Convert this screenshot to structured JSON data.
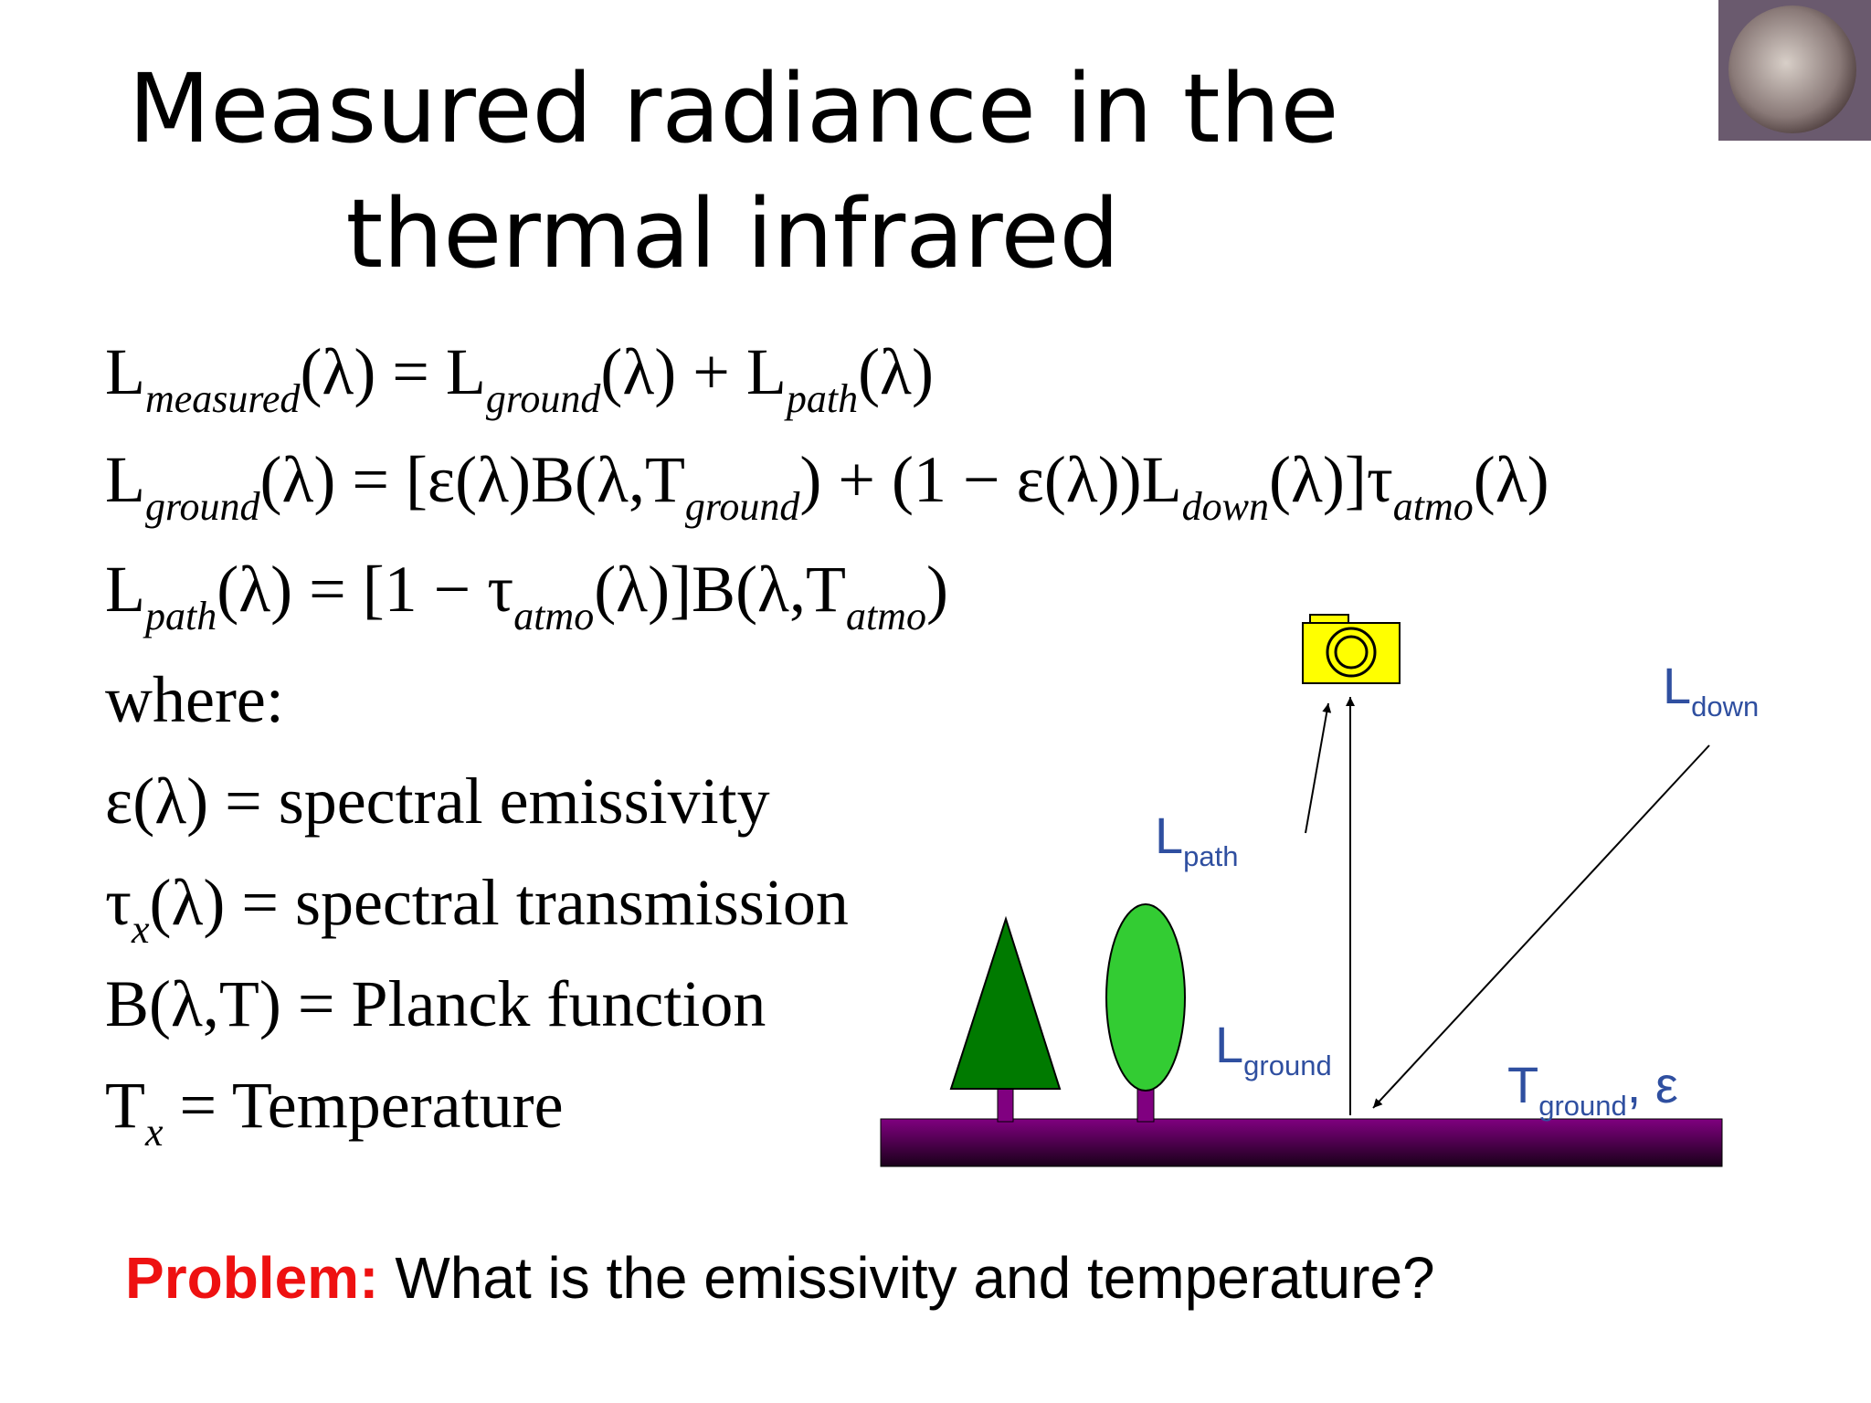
{
  "title": [
    "Measured radiance in the",
    "thermal infrared"
  ],
  "lines": [
    [
      {
        "t": "L"
      },
      {
        "sub": "measured"
      },
      {
        "t": "(λ) = L"
      },
      {
        "sub": "ground"
      },
      {
        "t": "(λ) + L"
      },
      {
        "sub": "path"
      },
      {
        "t": "(λ)"
      }
    ],
    [
      {
        "t": "L"
      },
      {
        "sub": "ground"
      },
      {
        "t": "(λ) = [ε(λ)B(λ,T"
      },
      {
        "sub": "ground"
      },
      {
        "t": ") + (1 − ε(λ))L"
      },
      {
        "sub": "down"
      },
      {
        "t": "(λ)]τ"
      },
      {
        "sub": "atmo"
      },
      {
        "t": "(λ)"
      }
    ],
    [
      {
        "t": "L"
      },
      {
        "sub": "path"
      },
      {
        "t": "(λ) = [1 − τ"
      },
      {
        "sub": "atmo"
      },
      {
        "t": "(λ)]B(λ,T"
      },
      {
        "sub": "atmo"
      },
      {
        "t": ")"
      }
    ],
    [
      {
        "t": "where:"
      }
    ],
    [
      {
        "t": "ε(λ) = spectral emissivity"
      }
    ],
    [
      {
        "t": "τ"
      },
      {
        "sub": "x"
      },
      {
        "t": "(λ) = spectral transmission"
      }
    ],
    [
      {
        "t": "B(λ,T) = Planck function"
      }
    ],
    [
      {
        "t": "T"
      },
      {
        "sub": "x"
      },
      {
        "t": " =  Temperature"
      }
    ]
  ],
  "diagram": {
    "labels": [
      [
        {
          "t": "L"
        },
        {
          "sub": "path"
        }
      ],
      [
        {
          "t": "L"
        },
        {
          "sub": "ground"
        }
      ],
      [
        {
          "t": "L"
        },
        {
          "sub": "down"
        }
      ],
      [
        {
          "t": "T"
        },
        {
          "sub": "ground"
        },
        {
          "t": ", ε"
        }
      ]
    ]
  },
  "problem": {
    "label": "Problem:",
    "text": "What is the emissivity and temperature?"
  }
}
